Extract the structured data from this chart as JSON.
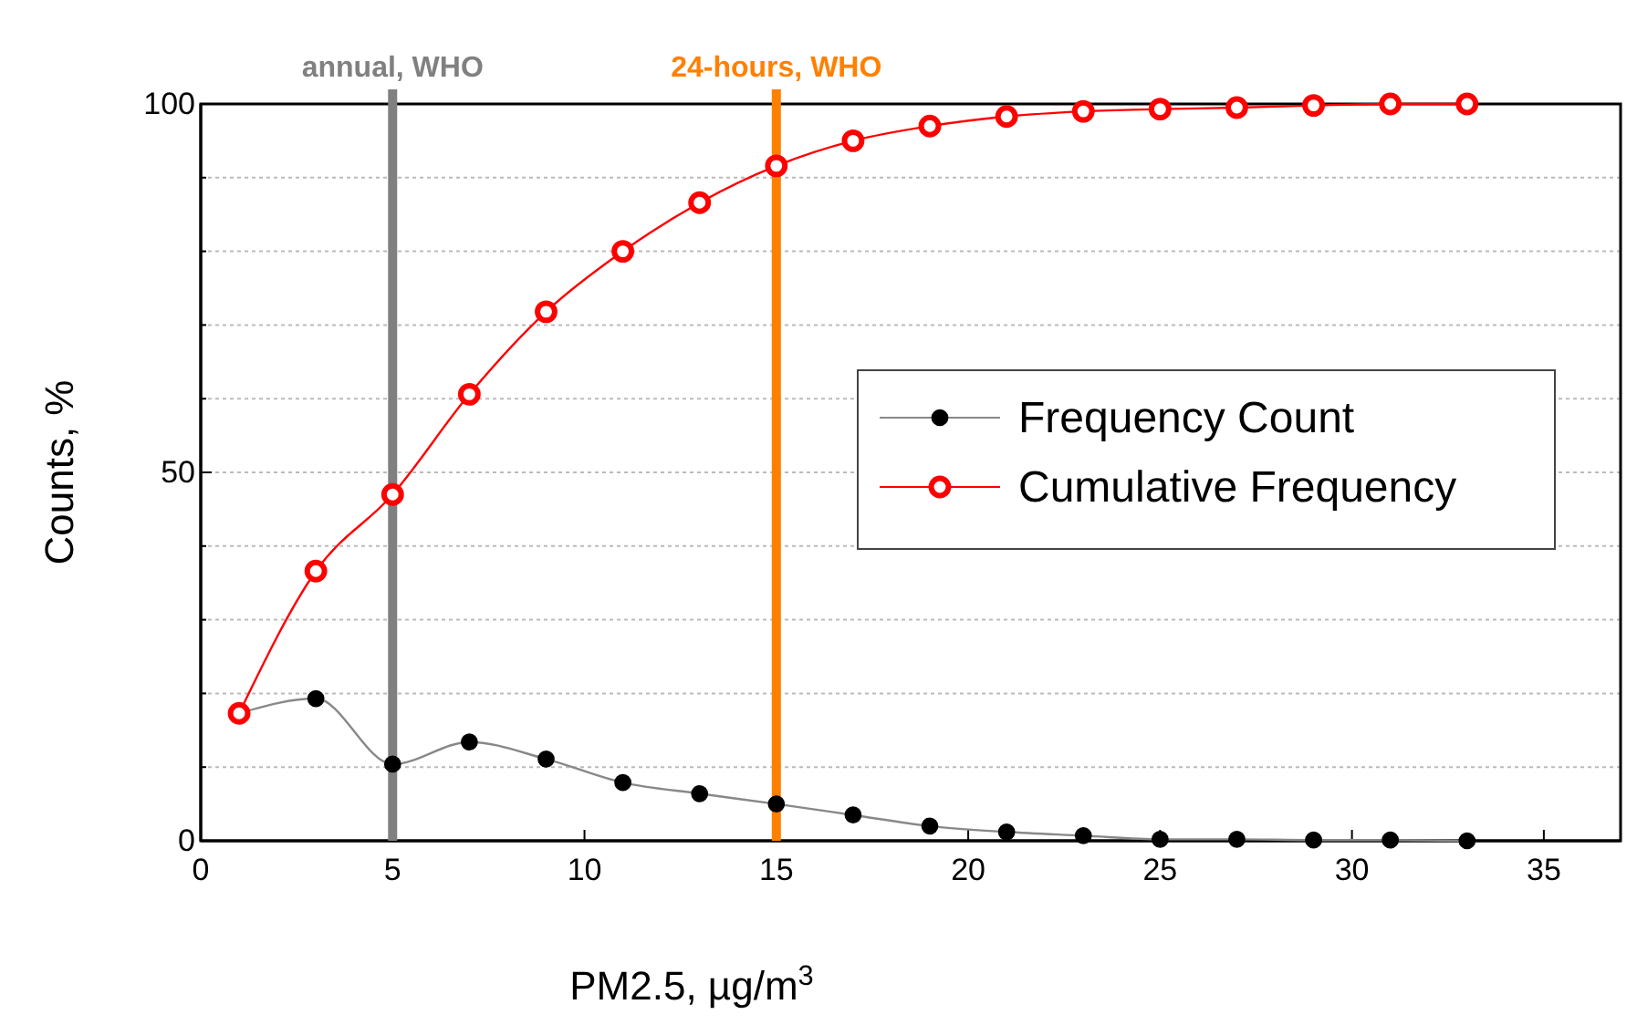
{
  "chart_data": {
    "type": "line",
    "xlabel": "PM2.5, µg/m$^{3}$",
    "ylabel": "Counts, %",
    "xlim": [
      0,
      37
    ],
    "xticks": [
      0,
      5,
      10,
      15,
      20,
      25,
      30,
      35
    ],
    "ylim": [
      0,
      100
    ],
    "yticks": [
      0,
      {
        "value": 10,
        "label": null
      },
      {
        "value": 20,
        "label": null
      },
      {
        "value": 30,
        "label": null
      },
      {
        "value": 40,
        "label": null
      },
      50,
      {
        "value": 60,
        "label": null
      },
      {
        "value": 70,
        "label": null
      },
      {
        "value": 80,
        "label": null
      },
      {
        "value": 90,
        "label": null
      },
      100
    ],
    "grid": "y",
    "legend": "right",
    "marker": "circle",
    "line_style": "solid",
    "x": [
      1,
      3,
      5,
      7,
      9,
      11,
      13,
      15,
      17,
      19,
      21,
      23,
      25,
      27,
      29,
      31,
      33
    ],
    "series": [
      {
        "name": "Frequency Count",
        "color": "#000000",
        "values": [
          17.3,
          19.3,
          10.4,
          13.4,
          11.1,
          7.9,
          6.4,
          5.0,
          3.5,
          2.0,
          1.2,
          0.7,
          0.2,
          0.2,
          0.1,
          0.1,
          0
        ]
      },
      {
        "name": "Cumulative Frequency",
        "color": "#ff0000",
        "values": [
          17.3,
          36.6,
          47,
          60.6,
          71.8,
          80,
          86.6,
          91.6,
          95,
          97,
          98.3,
          99,
          99.3,
          99.5,
          99.8,
          100,
          100
        ]
      }
    ],
    "ref_lines": [
      {
        "axis": "x",
        "value": 5,
        "label": "annual, WHO",
        "color": "#808080"
      },
      {
        "axis": "x",
        "value": 15,
        "label": "24-hours, WHO",
        "color": "#ff8000"
      }
    ]
  }
}
